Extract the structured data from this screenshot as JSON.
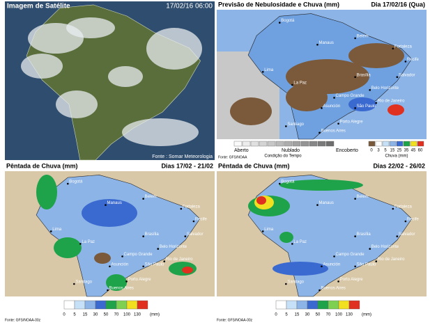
{
  "satellite": {
    "title": "Imagem de Satélite",
    "datetime": "17/02/16 06:00",
    "source": "Fonte : Somar Meteorologia"
  },
  "forecast": {
    "title": "Previsão de Nebulosidade e Chuva (mm)",
    "date": "Dia 17/02/16 (Qua)",
    "cities": [
      "Bogotá",
      "Manaus",
      "Belém",
      "Fortaleza",
      "Recife",
      "Lima",
      "Salvador",
      "Brasília",
      "La Paz",
      "Belo Horizonte",
      "Campo Grande",
      "Asunción",
      "São Paulo",
      "Rio de Janeiro",
      "Porto Alegre",
      "Santiago",
      "Buenos Aires"
    ],
    "cloud_legend": {
      "labels": [
        "Aberto",
        "Nublado",
        "Encoberto"
      ],
      "caption": "Condição do Tempo"
    },
    "rain_legend": {
      "values": [
        0,
        3,
        5,
        15,
        25,
        35,
        45,
        60
      ],
      "caption": "Chuva (mm)"
    },
    "source": "Fonte: GFS/NOAA"
  },
  "pentads": [
    {
      "title": "Pêntada de Chuva (mm)",
      "dates": "Dias 17/02 - 21/02",
      "cities": [
        "Bogotá",
        "Manaus",
        "Belém",
        "Fortaleza",
        "Recife",
        "Lima",
        "Salvador",
        "Brasília",
        "La Paz",
        "Belo Horizonte",
        "Campo Grande",
        "Asunción",
        "São Paulo",
        "Rio de Janeiro",
        "Porto Alegre",
        "Santiago",
        "Buenos Aires"
      ],
      "legend": {
        "values": [
          0,
          5,
          15,
          30,
          50,
          70,
          100,
          130
        ],
        "unit": "(mm)"
      },
      "source": "Fonte: GFS/NOAA-00z"
    },
    {
      "title": "Pêntada de Chuva (mm)",
      "dates": "Dias 22/02 - 26/02",
      "cities": [
        "Bogotá",
        "Manaus",
        "Belém",
        "Fortaleza",
        "Recife",
        "Lima",
        "Salvador",
        "Brasília",
        "La Paz",
        "Belo Horizonte",
        "Campo Grande",
        "Asunción",
        "São Paulo",
        "Rio de Janeiro",
        "Porto Alegre",
        "Santiago",
        "Buenos Aires"
      ],
      "legend": {
        "values": [
          0,
          5,
          15,
          30,
          50,
          70,
          100,
          130
        ],
        "unit": "(mm)"
      },
      "source": "Fonte: GFS/NOAA-00z"
    }
  ]
}
